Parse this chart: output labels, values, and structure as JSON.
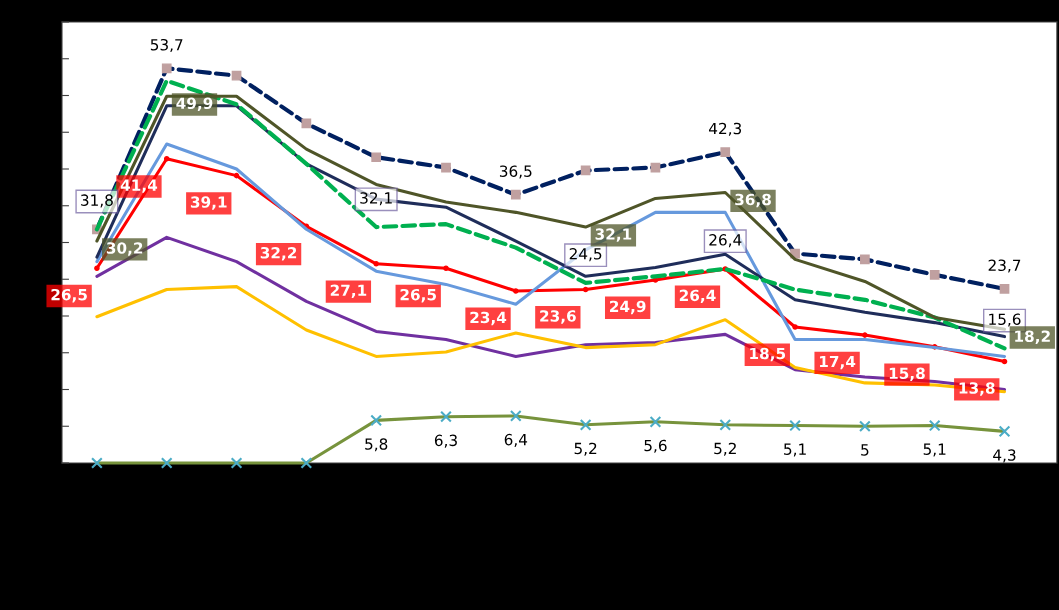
{
  "chart_data": {
    "type": "line",
    "categories": [
      null,
      null,
      null,
      null,
      null,
      null,
      null,
      null,
      null,
      null,
      null,
      null,
      null,
      null
    ],
    "ylim": [
      0,
      60
    ],
    "yticks": [
      {
        "value": 0,
        "label": null
      },
      {
        "value": 5,
        "label": null
      },
      {
        "value": 10,
        "label": null
      },
      {
        "value": 15,
        "label": null
      },
      {
        "value": 20,
        "label": null
      },
      {
        "value": 25,
        "label": null
      },
      {
        "value": 30,
        "label": null
      },
      {
        "value": 35,
        "label": null
      },
      {
        "value": 40,
        "label": null
      },
      {
        "value": 45,
        "label": null
      },
      {
        "value": 50,
        "label": null
      },
      {
        "value": 55,
        "label": null
      },
      {
        "value": 60,
        "label": null
      }
    ],
    "grid": false,
    "series": [
      {
        "color": "#ff0000",
        "marker": "circle",
        "line_style": "solid",
        "values": [
          26.5,
          41.4,
          39.1,
          32.2,
          27.1,
          26.5,
          23.4,
          23.6,
          24.9,
          26.4,
          18.5,
          17.4,
          15.8,
          13.8
        ],
        "value_labels": [
          "26,5",
          "41,4",
          "39,1",
          "32,2",
          "27,1",
          "26,5",
          "23,4",
          "23,6",
          "24,9",
          "26,4",
          "18,5",
          "17,4",
          "15,8",
          "13,8"
        ]
      },
      {
        "color": "#6699dd",
        "marker": "none",
        "line_style": "solid",
        "values": [
          27.4,
          43.4,
          40.0,
          31.8,
          26.1,
          24.3,
          21.6,
          29.0,
          34.1,
          34.1,
          16.8,
          16.8,
          15.7,
          14.5
        ]
      },
      {
        "color": "#77933c",
        "marker": "cross",
        "line_style": "solid",
        "values": [
          0,
          0,
          0,
          0,
          5.8,
          6.3,
          6.4,
          5.2,
          5.6,
          5.2,
          5.1,
          5,
          5.1,
          4.3
        ],
        "value_labels": [
          null,
          null,
          null,
          null,
          "5,8",
          "6,3",
          "6,4",
          "5,2",
          "5,6",
          "5,2",
          "5,1",
          "5",
          "5,1",
          "4,3"
        ]
      },
      {
        "color": "#7030a0",
        "marker": "none",
        "line_style": "solid",
        "values": [
          25.4,
          30.7,
          27.4,
          22.0,
          17.9,
          16.8,
          14.5,
          16.1,
          16.4,
          17.5,
          12.7,
          11.7,
          11.1,
          10.0
        ]
      },
      {
        "color": "#ffc000",
        "marker": "none",
        "line_style": "solid",
        "values": [
          19.9,
          23.6,
          24.0,
          18.1,
          14.5,
          15.1,
          17.7,
          15.7,
          16.1,
          19.5,
          13.0,
          10.9,
          10.6,
          9.7
        ]
      },
      {
        "color": "#1f2d5a",
        "marker": "none",
        "line_style": "solid",
        "values": [
          28.0,
          48.6,
          48.6,
          40.7,
          35.9,
          34.8,
          30.2,
          25.4,
          26.6,
          28.4,
          22.2,
          20.5,
          19.1,
          17.2
        ]
      },
      {
        "color": "#002060",
        "marker": "square",
        "line_style": "dashed",
        "values": [
          31.8,
          53.7,
          52.7,
          46.2,
          41.6,
          40.2,
          36.5,
          39.8,
          40.2,
          42.3,
          28.5,
          27.7,
          25.6,
          23.7
        ],
        "value_labels": [
          null,
          "53,7",
          null,
          null,
          null,
          null,
          "36,5",
          null,
          null,
          "42,3",
          null,
          null,
          null,
          "23,7"
        ]
      },
      {
        "color": "#00b050",
        "marker": "none",
        "line_style": "dashed",
        "values": [
          31.8,
          52.0,
          48.8,
          40.7,
          32.1,
          32.5,
          29.3,
          24.5,
          25.4,
          26.4,
          23.6,
          22.2,
          19.8,
          15.6
        ],
        "value_labels": [
          "31,8",
          null,
          null,
          null,
          "32,1",
          null,
          null,
          "24,5",
          null,
          "26,4",
          null,
          null,
          null,
          "15,6"
        ]
      },
      {
        "color": "#4f5528",
        "marker": "none",
        "line_style": "solid",
        "values": [
          30.2,
          49.9,
          49.9,
          42.7,
          37.9,
          35.5,
          34.1,
          32.1,
          36.0,
          36.8,
          27.7,
          24.7,
          19.8,
          18.2
        ],
        "value_labels": [
          "30,2",
          "49,9",
          null,
          null,
          null,
          null,
          null,
          "32,1",
          null,
          "36,8",
          null,
          null,
          null,
          "18,2"
        ]
      }
    ]
  }
}
